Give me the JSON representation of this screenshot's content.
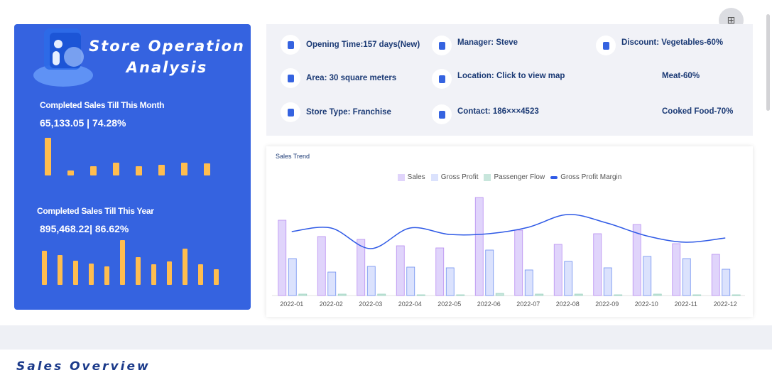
{
  "left": {
    "title_line1": "Store Operation",
    "title_line2": "Analysis",
    "month_label": "Completed Sales Till This Month",
    "month_value": "65,133.05 | 74.28%",
    "month_bars": [
      53,
      7,
      13,
      18,
      13,
      15,
      18,
      17
    ],
    "year_label": "Completed Sales Till This Year",
    "year_value": "895,468.22| 86.62%",
    "year_bars": [
      48,
      42,
      34,
      30,
      26,
      63,
      39,
      29,
      33,
      51,
      29,
      22
    ],
    "bar_color": "#ffbd4f",
    "bg_color": "#3563e0"
  },
  "info": {
    "opening": "Opening Time:157 days(New)",
    "area": "Area: 30 square meters",
    "type": "Store Type: Franchise",
    "manager": "Manager:  Steve",
    "location": "Location: Click to view map",
    "contact": "Contact:  186×××4523",
    "discount": "Discount:  Vegetables-60%",
    "meat": "Meat-60%",
    "cooked": "Cooked Food-70%"
  },
  "chart_data": {
    "type": "bar",
    "title": "Sales Trend",
    "categories": [
      "2022-01",
      "2022-02",
      "2022-03",
      "2022-04",
      "2022-05",
      "2022-06",
      "2022-07",
      "2022-08",
      "2022-09",
      "2022-10",
      "2022-11",
      "2022-12"
    ],
    "series": [
      {
        "name": "Sales",
        "type": "bar",
        "color": "#e0d4fb",
        "values": [
          106,
          83,
          79,
          70,
          67,
          138,
          92,
          72,
          87,
          100,
          73,
          58
        ]
      },
      {
        "name": "Gross Profit",
        "type": "bar",
        "color": "#dbe2fd",
        "values": [
          52,
          33,
          41,
          40,
          39,
          64,
          36,
          48,
          39,
          55,
          52,
          37
        ]
      },
      {
        "name": "Passenger Flow",
        "type": "bar",
        "color": "#c8e6dc",
        "values": [
          2,
          2,
          2,
          1,
          1,
          3,
          2,
          2,
          1,
          2,
          1,
          1
        ]
      },
      {
        "name": "Gross Profit Margin",
        "type": "line",
        "color": "#2f5ae6",
        "values": [
          90,
          95,
          66,
          95,
          86,
          87,
          96,
          114,
          102,
          84,
          75,
          81
        ]
      }
    ],
    "y_axis": "hidden",
    "grid": false,
    "legend": "top"
  },
  "overview_title": "Sales Overview"
}
